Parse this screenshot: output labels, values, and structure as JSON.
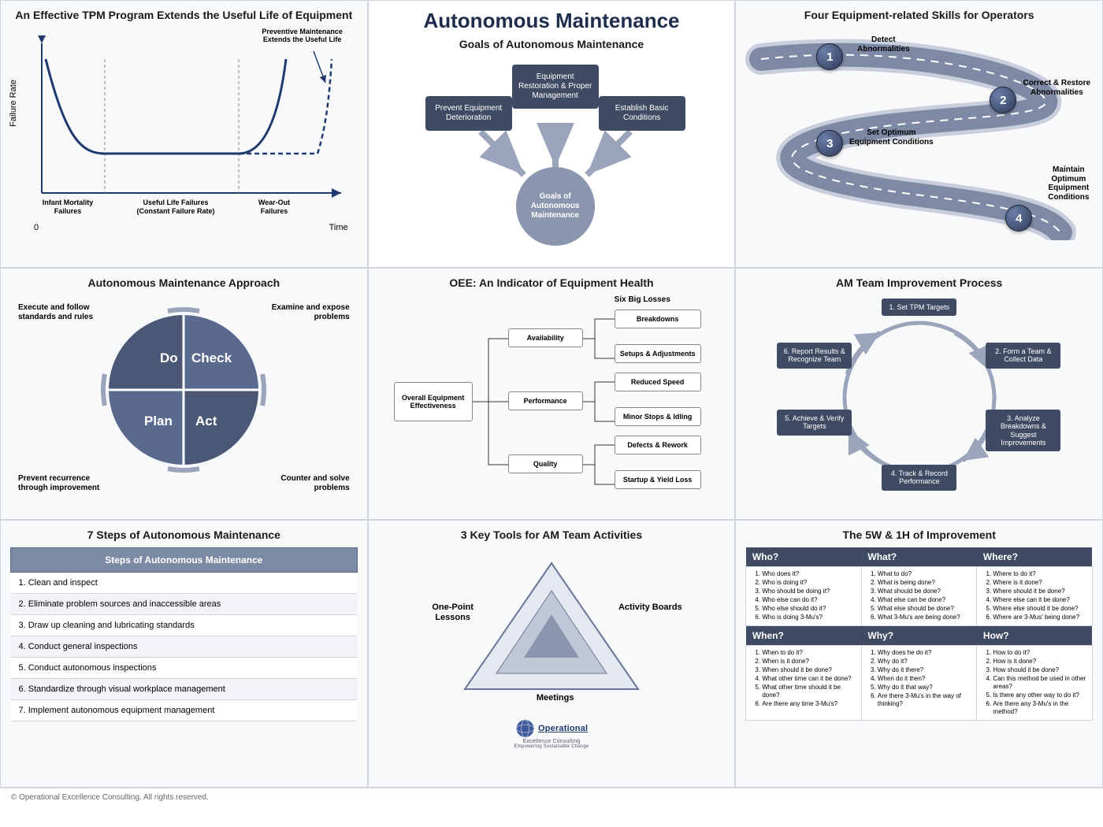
{
  "main_title": "Autonomous Maintenance",
  "footer": "© Operational Excellence Consulting. All rights reserved.",
  "colors": {
    "box": "#3f4a63",
    "accent": "#8a96ae",
    "line": "#1f3a6e"
  },
  "panel1": {
    "title": "An Effective TPM Program Extends the Useful Life of Equipment",
    "ylabel": "Failure Rate",
    "xlabel": "Time",
    "zero": "0",
    "annot": "Preventive Maintenance Extends the Useful Life",
    "regions": [
      "Infant Mortality Failures",
      "Useful Life Failures\n(Constant Failure Rate)",
      "Wear-Out Failures"
    ],
    "curve_color": "#1f3a6e",
    "dash_color": "#1f3a6e"
  },
  "panel2": {
    "subtitle": "Goals of Autonomous Maintenance",
    "boxes": [
      "Prevent Equipment Deterioration",
      "Equipment Restoration & Proper Management",
      "Establish Basic Conditions"
    ],
    "circle": "Goals of Autonomous Maintenance"
  },
  "panel3": {
    "title": "Four Equipment-related Skills for Operators",
    "steps": [
      {
        "n": "1",
        "label": "Detect Abnormalities"
      },
      {
        "n": "2",
        "label": "Correct & Restore Abnormalities"
      },
      {
        "n": "3",
        "label": "Set Optimum Equipment Conditions"
      },
      {
        "n": "4",
        "label": "Maintain Optimum Equipment Conditions"
      }
    ]
  },
  "panel4": {
    "title": "Autonomous Maintenance Approach",
    "quadrants": [
      "Do",
      "Check",
      "Plan",
      "Act"
    ],
    "outer": [
      "Execute and follow standards and rules",
      "Examine and expose problems",
      "Prevent recurrence through improvement",
      "Counter and solve problems"
    ]
  },
  "panel5": {
    "title": "OEE: An Indicator of Equipment Health",
    "root": "Overall Equipment Effectiveness",
    "mid": [
      "Availability",
      "Performance",
      "Quality"
    ],
    "losses_hdr": "Six Big Losses",
    "losses": [
      "Breakdowns",
      "Setups & Adjustments",
      "Reduced Speed",
      "Minor Stops & Idling",
      "Defects & Rework",
      "Startup & Yield Loss"
    ]
  },
  "panel6": {
    "title": "AM Team Improvement Process",
    "steps": [
      "1. Set TPM Targets",
      "2. Form a Team & Collect Data",
      "3. Analyze Breakdowns & Suggest Improvements",
      "4. Track & Record Performance",
      "5. Achieve & Verify Targets",
      "6. Report Results & Recognize Team"
    ]
  },
  "panel7": {
    "title": "7 Steps of Autonomous Maintenance",
    "header": "Steps of Autonomous Maintenance",
    "rows": [
      "1.  Clean and inspect",
      "2.  Eliminate problem sources and inaccessible areas",
      "3.  Draw up cleaning and lubricating standards",
      "4.  Conduct general inspections",
      "5.  Conduct autonomous inspections",
      "6.  Standardize through visual workplace management",
      "7.  Implement autonomous equipment management"
    ]
  },
  "panel8": {
    "title": "3 Key Tools for AM Team Activities",
    "vertices": [
      "One-Point Lessons",
      "Activity Boards",
      "Meetings"
    ],
    "logo_main": "Operational",
    "logo_sub1": "Excellence Consulting",
    "logo_sub2": "Empowering Sustainable Change"
  },
  "panel9": {
    "title": "The 5W & 1H of Improvement",
    "cells": [
      {
        "h": "Who?",
        "items": [
          "Who does it?",
          "Who is doing it?",
          "Who should be doing it?",
          "Who else can do it?",
          "Who else should do it?",
          "Who is doing 3-Mu's?"
        ]
      },
      {
        "h": "What?",
        "items": [
          "What to do?",
          "What is being done?",
          "What should be done?",
          "What else can be done?",
          "What else should be done?",
          "What 3-Mu's are being done?"
        ]
      },
      {
        "h": "Where?",
        "items": [
          "Where to do it?",
          "Where is it done?",
          "Where should it be done?",
          "Where else can it be done?",
          "Where else should it be done?",
          "Where are 3-Mus' being done?"
        ]
      },
      {
        "h": "When?",
        "items": [
          "When to do it?",
          "When is it done?",
          "When should it be done?",
          "What other time can it be done?",
          "What other time should it be done?",
          "Are there any time 3-Mu's?"
        ]
      },
      {
        "h": "Why?",
        "items": [
          "Why does he do it?",
          "Why do it?",
          "Why do it there?",
          "When do it then?",
          "Why do it that way?",
          "Are there 3-Mu's in the way of thinking?"
        ]
      },
      {
        "h": "How?",
        "items": [
          "How to do it?",
          "How is it done?",
          "How should it be done?",
          "Can this method be used in other areas?",
          "Is there any other way to do it?",
          "Are there any 3-Mu's in the method?"
        ]
      }
    ]
  }
}
